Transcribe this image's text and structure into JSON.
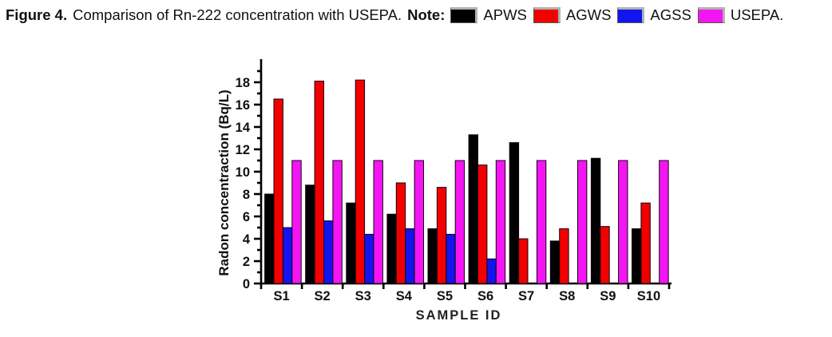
{
  "caption": {
    "figure_label": "Figure 4.",
    "text": "Comparison of Rn-222 concentration with USEPA.",
    "note_label": "Note:"
  },
  "legend": [
    {
      "label": "APWS",
      "color": "#000000"
    },
    {
      "label": "AGWS",
      "color": "#f20000"
    },
    {
      "label": "AGSS",
      "color": "#1414ee"
    },
    {
      "label": "USEPA.",
      "color": "#f316f3"
    }
  ],
  "chart_data": {
    "type": "bar",
    "title": "",
    "xlabel": "SAMPLE ID",
    "ylabel": "Radon concentraction (Bq/L)",
    "categories": [
      "S1",
      "S2",
      "S3",
      "S4",
      "S5",
      "S6",
      "S7",
      "S8",
      "S9",
      "S10"
    ],
    "series": [
      {
        "name": "APWS",
        "color": "#000000",
        "values": [
          8.0,
          8.8,
          7.2,
          6.2,
          4.9,
          13.3,
          12.6,
          3.8,
          11.2,
          4.9
        ]
      },
      {
        "name": "AGWS",
        "color": "#f20000",
        "values": [
          16.5,
          18.1,
          18.2,
          9.0,
          8.6,
          10.6,
          4.0,
          4.9,
          5.1,
          7.2
        ]
      },
      {
        "name": "AGSS",
        "color": "#1414ee",
        "values": [
          5.0,
          5.6,
          4.4,
          4.9,
          4.4,
          2.2,
          0,
          0,
          0,
          0
        ]
      },
      {
        "name": "USEPA",
        "color": "#f316f3",
        "values": [
          11,
          11,
          11,
          11,
          11,
          11,
          11,
          11,
          11,
          11
        ]
      }
    ],
    "ylim": [
      0,
      19
    ],
    "ytick_major_step": 2,
    "ytick_minor_step": 1,
    "grid": false,
    "legend_position": "caption-top"
  }
}
